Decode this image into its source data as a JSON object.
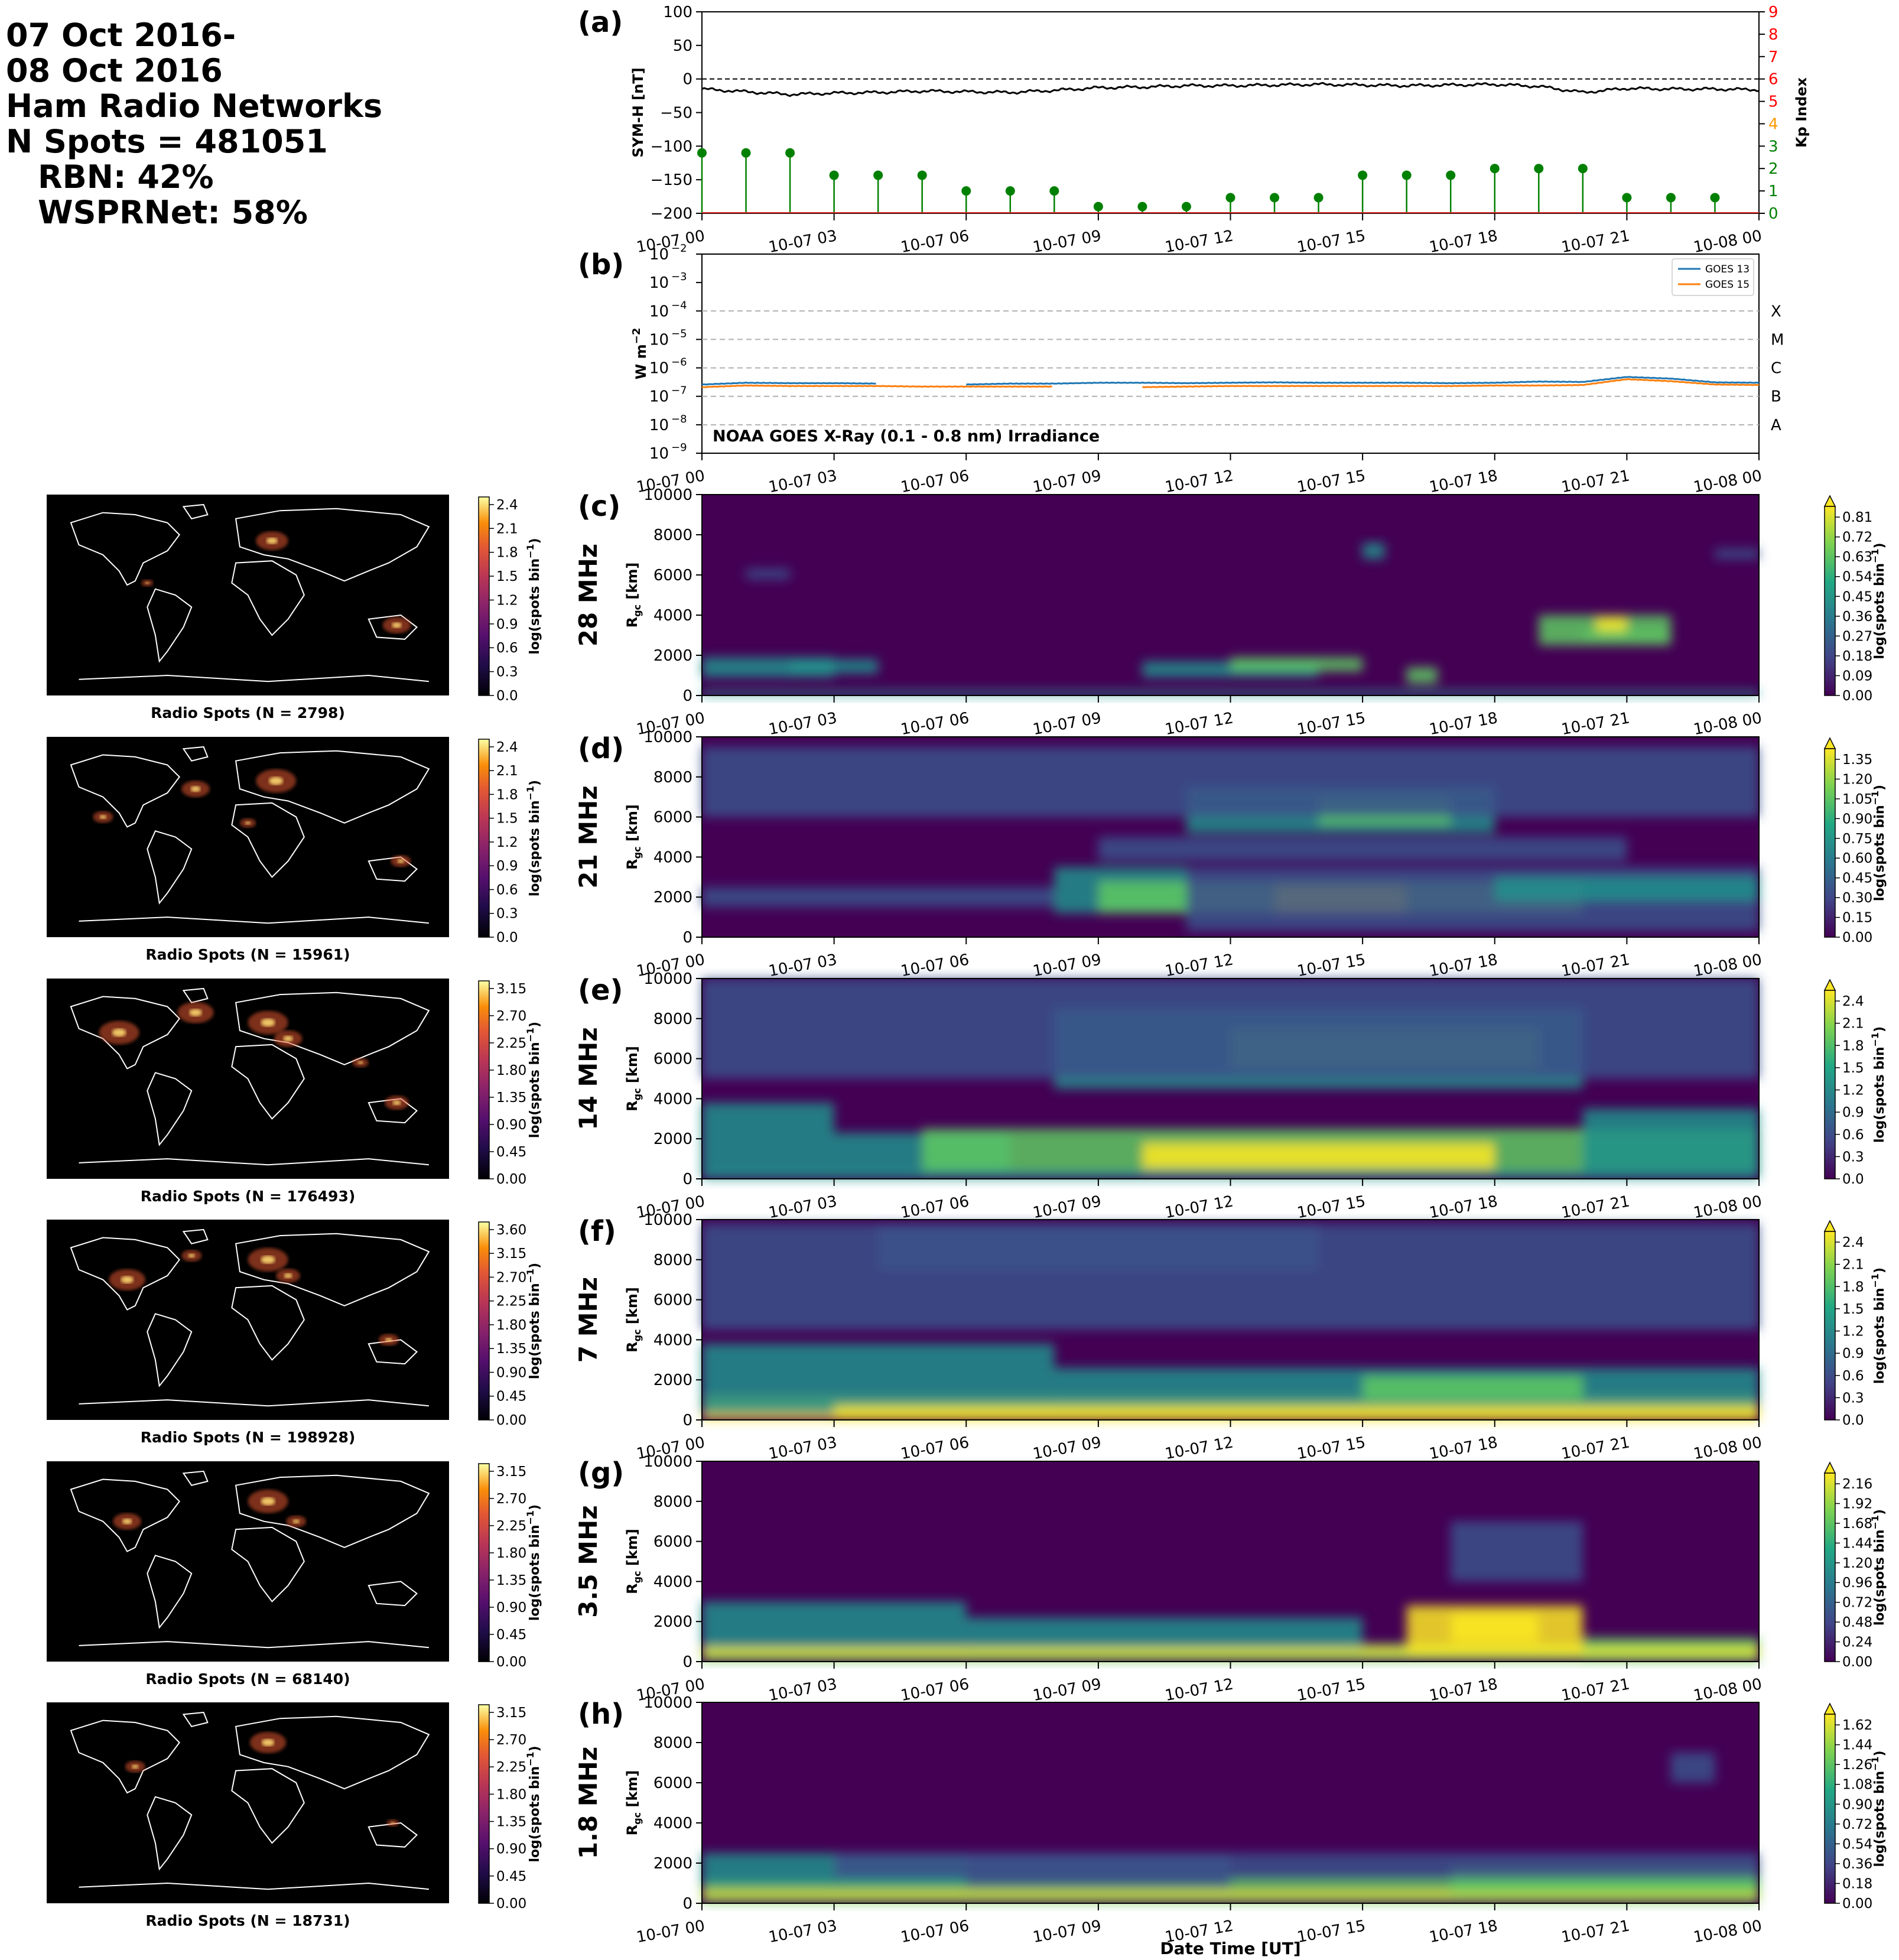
{
  "header": {
    "lines": [
      "07 Oct 2016-",
      "08 Oct 2016",
      "Ham Radio Networks",
      "N Spots = 481051",
      "RBN: 42%",
      "WSPRNet: 58%"
    ]
  },
  "colors": {
    "symh_line": "#000000",
    "kp_green": "#008000",
    "kp_orange": "#ff9900",
    "kp_red": "#ff0000",
    "goes13": "#1f77b4",
    "goes15": "#ff7f0e",
    "map_background": "#000000",
    "coastline": "#ffffff"
  },
  "time_ticks": [
    "10-07 00",
    "10-07 03",
    "10-07 06",
    "10-07 09",
    "10-07 12",
    "10-07 15",
    "10-07 18",
    "10-07 21",
    "10-08 00"
  ],
  "symh_panel": {
    "label": "(a)",
    "ylabel": "SYM-H [nT]",
    "y2label": "Kp Index",
    "yticks": [
      "100",
      "50",
      "0",
      "−50",
      "−100",
      "−150",
      "−200"
    ],
    "y2ticks": [
      "0",
      "1",
      "2",
      "3",
      "4",
      "5",
      "6",
      "7",
      "8",
      "9"
    ]
  },
  "goes_panel": {
    "label": "(b)",
    "ylabel": "W m",
    "ylabel_sup": "−2",
    "ytick_exps": [
      "−2",
      "−3",
      "−4",
      "−5",
      "−6",
      "−7",
      "−8",
      "−9"
    ],
    "classes": [
      "X",
      "M",
      "C",
      "B",
      "A"
    ],
    "title": "NOAA GOES X-Ray (0.1 - 0.8 nm) Irradiance",
    "legend": [
      "GOES 13",
      "GOES 15"
    ]
  },
  "rgc_yticks": [
    "10000",
    "8000",
    "6000",
    "4000",
    "2000",
    "0"
  ],
  "rgc_ylabel": "R",
  "rgc_ylabel_sub": "gc",
  "rgc_ylabel_unit": " [km]",
  "cbar_label": "log(spots bin",
  "cbar_label_sup": "−1",
  "xlabel": "Date Time [UT]",
  "bands": [
    {
      "panel": "(c)",
      "band": "28 MHz",
      "map_caption": "Radio Spots (N = 2798)",
      "map_ticks": [
        "0.0",
        "0.3",
        "0.6",
        "0.9",
        "1.2",
        "1.5",
        "1.8",
        "2.1",
        "2.4"
      ],
      "rti_ticks": [
        "0.00",
        "0.09",
        "0.18",
        "0.27",
        "0.36",
        "0.45",
        "0.54",
        "0.63",
        "0.72",
        "0.81"
      ]
    },
    {
      "panel": "(d)",
      "band": "21 MHz",
      "map_caption": "Radio Spots (N = 15961)",
      "map_ticks": [
        "0.0",
        "0.3",
        "0.6",
        "0.9",
        "1.2",
        "1.5",
        "1.8",
        "2.1",
        "2.4"
      ],
      "rti_ticks": [
        "0.00",
        "0.15",
        "0.30",
        "0.45",
        "0.60",
        "0.75",
        "0.90",
        "1.05",
        "1.20",
        "1.35"
      ]
    },
    {
      "panel": "(e)",
      "band": "14 MHz",
      "map_caption": "Radio Spots (N = 176493)",
      "map_ticks": [
        "0.00",
        "0.45",
        "0.90",
        "1.35",
        "1.80",
        "2.25",
        "2.70",
        "3.15"
      ],
      "rti_ticks": [
        "0.0",
        "0.3",
        "0.6",
        "0.9",
        "1.2",
        "1.5",
        "1.8",
        "2.1",
        "2.4"
      ]
    },
    {
      "panel": "(f)",
      "band": "7 MHz",
      "map_caption": "Radio Spots (N = 198928)",
      "map_ticks": [
        "0.00",
        "0.45",
        "0.90",
        "1.35",
        "1.80",
        "2.25",
        "2.70",
        "3.15",
        "3.60"
      ],
      "rti_ticks": [
        "0.0",
        "0.3",
        "0.6",
        "0.9",
        "1.2",
        "1.5",
        "1.8",
        "2.1",
        "2.4"
      ]
    },
    {
      "panel": "(g)",
      "band": "3.5 MHz",
      "map_caption": "Radio Spots (N = 68140)",
      "map_ticks": [
        "0.00",
        "0.45",
        "0.90",
        "1.35",
        "1.80",
        "2.25",
        "2.70",
        "3.15"
      ],
      "rti_ticks": [
        "0.00",
        "0.24",
        "0.48",
        "0.72",
        "0.96",
        "1.20",
        "1.44",
        "1.68",
        "1.92",
        "2.16"
      ]
    },
    {
      "panel": "(h)",
      "band": "1.8 MHz",
      "map_caption": "Radio Spots (N = 18731)",
      "map_ticks": [
        "0.00",
        "0.45",
        "0.90",
        "1.35",
        "1.80",
        "2.25",
        "2.70",
        "3.15"
      ],
      "rti_ticks": [
        "0.00",
        "0.18",
        "0.36",
        "0.54",
        "0.72",
        "0.90",
        "1.08",
        "1.26",
        "1.44",
        "1.62"
      ]
    }
  ],
  "chart_data": [
    {
      "type": "line",
      "title": "",
      "ylabel": "SYM-H [nT]",
      "ylim": [
        -200,
        100
      ],
      "x": [
        "10-07 00",
        "10-07 01",
        "10-07 02",
        "10-07 03",
        "10-07 04",
        "10-07 05",
        "10-07 06",
        "10-07 07",
        "10-07 08",
        "10-07 09",
        "10-07 10",
        "10-07 11",
        "10-07 12",
        "10-07 13",
        "10-07 14",
        "10-07 15",
        "10-07 16",
        "10-07 17",
        "10-07 18",
        "10-07 19",
        "10-07 20",
        "10-07 21",
        "10-07 22",
        "10-07 23",
        "10-08 00"
      ],
      "series": [
        {
          "name": "SYM-H",
          "values": [
            -15,
            -19,
            -23,
            -21,
            -20,
            -18,
            -19,
            -20,
            -17,
            -13,
            -12,
            -10,
            -10,
            -9,
            -8,
            -9,
            -10,
            -9,
            -8,
            -11,
            -20,
            -14,
            -15,
            -15,
            -16
          ]
        }
      ]
    },
    {
      "type": "bar",
      "title": "",
      "ylabel": "Kp Index",
      "ylim": [
        0,
        9
      ],
      "x": [
        "10-07 00",
        "10-07 01",
        "10-07 02",
        "10-07 03",
        "10-07 04",
        "10-07 05",
        "10-07 06",
        "10-07 07",
        "10-07 08",
        "10-07 09",
        "10-07 10",
        "10-07 11",
        "10-07 12",
        "10-07 13",
        "10-07 14",
        "10-07 15",
        "10-07 16",
        "10-07 17",
        "10-07 18",
        "10-07 19",
        "10-07 20",
        "10-07 21",
        "10-07 22",
        "10-07 23"
      ],
      "values": [
        2.7,
        2.7,
        2.7,
        1.7,
        1.7,
        1.7,
        1.0,
        1.0,
        1.0,
        0.3,
        0.3,
        0.3,
        0.7,
        0.7,
        0.7,
        1.7,
        1.7,
        1.7,
        2.0,
        2.0,
        2.0,
        0.7,
        0.7,
        0.7
      ]
    },
    {
      "type": "line",
      "title": "NOAA GOES X-Ray (0.1 - 0.8 nm) Irradiance",
      "ylabel": "W m-2",
      "yscale": "log",
      "ylim": [
        1e-09,
        0.01
      ],
      "x": [
        "10-07 00",
        "10-07 01",
        "10-07 02",
        "10-07 03",
        "10-07 04",
        "10-07 05",
        "10-07 06",
        "10-07 07",
        "10-07 08",
        "10-07 09",
        "10-07 10",
        "10-07 11",
        "10-07 12",
        "10-07 13",
        "10-07 14",
        "10-07 15",
        "10-07 16",
        "10-07 17",
        "10-07 18",
        "10-07 19",
        "10-07 20",
        "10-07 21",
        "10-07 22",
        "10-07 23",
        "10-08 00"
      ],
      "series": [
        {
          "name": "GOES 13",
          "values": [
            2.6e-07,
            3e-07,
            2.9e-07,
            2.9e-07,
            2.8e-07,
            null,
            2.6e-07,
            2.8e-07,
            2.8e-07,
            3e-07,
            3e-07,
            2.9e-07,
            3e-07,
            3.1e-07,
            3e-07,
            3e-07,
            3e-07,
            2.9e-07,
            3e-07,
            3.3e-07,
            3.2e-07,
            4.8e-07,
            4.2e-07,
            3.1e-07,
            3e-07
          ]
        },
        {
          "name": "GOES 15",
          "values": [
            2.1e-07,
            2.4e-07,
            2.3e-07,
            2.3e-07,
            2.3e-07,
            2.2e-07,
            2.2e-07,
            2.2e-07,
            2.2e-07,
            null,
            2.1e-07,
            2.2e-07,
            2.3e-07,
            2.3e-07,
            2.3e-07,
            2.3e-07,
            2.3e-07,
            2.3e-07,
            2.4e-07,
            2.4e-07,
            2.5e-07,
            4e-07,
            3.4e-07,
            2.6e-07,
            2.5e-07
          ]
        }
      ]
    },
    {
      "type": "heatmap",
      "title": "28 MHz",
      "ylabel": "Rgc [km]",
      "ylim": [
        0,
        10000
      ],
      "xlim": [
        "10-07 00",
        "10-08 00"
      ],
      "zlim": [
        0,
        0.81
      ]
    },
    {
      "type": "heatmap",
      "title": "21 MHz",
      "ylabel": "Rgc [km]",
      "ylim": [
        0,
        10000
      ],
      "xlim": [
        "10-07 00",
        "10-08 00"
      ],
      "zlim": [
        0,
        1.35
      ]
    },
    {
      "type": "heatmap",
      "title": "14 MHz",
      "ylabel": "Rgc [km]",
      "ylim": [
        0,
        10000
      ],
      "xlim": [
        "10-07 00",
        "10-08 00"
      ],
      "zlim": [
        0,
        2.4
      ]
    },
    {
      "type": "heatmap",
      "title": "7 MHz",
      "ylabel": "Rgc [km]",
      "ylim": [
        0,
        10000
      ],
      "xlim": [
        "10-07 00",
        "10-08 00"
      ],
      "zlim": [
        0,
        2.4
      ]
    },
    {
      "type": "heatmap",
      "title": "3.5 MHz",
      "ylabel": "Rgc [km]",
      "ylim": [
        0,
        10000
      ],
      "xlim": [
        "10-07 00",
        "10-08 00"
      ],
      "zlim": [
        0,
        2.16
      ]
    },
    {
      "type": "heatmap",
      "title": "1.8 MHz",
      "ylabel": "Rgc [km]",
      "ylim": [
        0,
        10000
      ],
      "xlim": [
        "10-07 00",
        "10-08 00"
      ],
      "zlim": [
        0,
        1.62
      ]
    }
  ]
}
